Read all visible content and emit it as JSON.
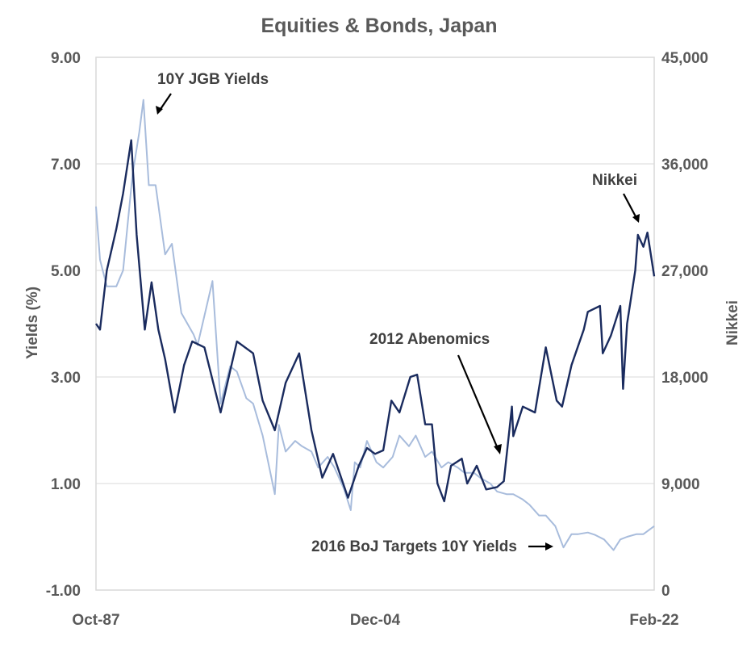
{
  "chart_data": {
    "type": "line",
    "title": "Equities & Bonds, Japan",
    "ylabel_left": "Yields  (%)",
    "ylabel_right": "Nikkei",
    "ylim_left": [
      -1,
      9
    ],
    "ylim_right": [
      0,
      45000
    ],
    "yticks_left": [
      "9.00",
      "7.00",
      "5.00",
      "3.00",
      "1.00",
      "-1.00"
    ],
    "yticks_right": [
      "45,000",
      "36,000",
      "27,000",
      "18,000",
      "9,000",
      "0"
    ],
    "x_ticks": [
      "Oct-87",
      "Dec-04",
      "Feb-22"
    ],
    "grid": true,
    "colors": {
      "yields": "#a8bcdc",
      "nikkei": "#1a2b5e",
      "grid": "#d9d9d9",
      "text": "#595959"
    },
    "series": [
      {
        "name": "10Y JGB Yields",
        "axis": "left",
        "x": [
          "1987-10",
          "1988-01",
          "1988-06",
          "1989-01",
          "1989-06",
          "1990-01",
          "1990-06",
          "1990-09",
          "1991-01",
          "1991-06",
          "1992-01",
          "1992-06",
          "1993-01",
          "1993-10",
          "1994-01",
          "1994-12",
          "1995-06",
          "1996-01",
          "1996-06",
          "1997-01",
          "1997-06",
          "1998-01",
          "1998-10",
          "1999-01",
          "1999-06",
          "2000-01",
          "2000-06",
          "2001-01",
          "2001-06",
          "2002-01",
          "2002-06",
          "2003-01",
          "2003-06",
          "2003-09",
          "2004-01",
          "2004-06",
          "2005-01",
          "2005-06",
          "2006-01",
          "2006-06",
          "2007-01",
          "2007-06",
          "2008-01",
          "2008-06",
          "2009-01",
          "2009-06",
          "2010-01",
          "2010-06",
          "2011-01",
          "2011-06",
          "2012-01",
          "2012-06",
          "2013-01",
          "2013-06",
          "2014-01",
          "2014-06",
          "2015-01",
          "2015-06",
          "2016-01",
          "2016-07",
          "2017-01",
          "2017-06",
          "2018-01",
          "2018-06",
          "2019-01",
          "2019-08",
          "2020-01",
          "2020-06",
          "2021-01",
          "2021-06",
          "2022-02"
        ],
        "values": [
          6.2,
          5.2,
          4.7,
          4.7,
          5.0,
          6.8,
          7.6,
          8.2,
          6.6,
          6.6,
          5.3,
          5.5,
          4.2,
          3.8,
          3.6,
          4.8,
          2.5,
          3.2,
          3.1,
          2.6,
          2.5,
          1.9,
          0.8,
          2.1,
          1.6,
          1.8,
          1.7,
          1.6,
          1.3,
          1.5,
          1.3,
          0.9,
          0.5,
          1.4,
          1.3,
          1.8,
          1.4,
          1.3,
          1.5,
          1.9,
          1.7,
          1.9,
          1.5,
          1.6,
          1.3,
          1.4,
          1.3,
          1.2,
          1.2,
          1.1,
          1.0,
          0.85,
          0.8,
          0.8,
          0.7,
          0.6,
          0.4,
          0.4,
          0.2,
          -0.2,
          0.05,
          0.05,
          0.08,
          0.04,
          -0.05,
          -0.25,
          -0.05,
          0.0,
          0.05,
          0.05,
          0.2
        ]
      },
      {
        "name": "Nikkei",
        "axis": "right",
        "x": [
          "1987-10",
          "1988-01",
          "1988-06",
          "1989-01",
          "1989-06",
          "1989-12",
          "1990-04",
          "1990-10",
          "1991-03",
          "1991-08",
          "1992-01",
          "1992-08",
          "1993-03",
          "1993-09",
          "1994-06",
          "1995-06",
          "1996-06",
          "1997-06",
          "1998-01",
          "1998-10",
          "1999-06",
          "2000-04",
          "2001-01",
          "2001-09",
          "2002-05",
          "2003-04",
          "2003-12",
          "2004-06",
          "2004-12",
          "2005-06",
          "2005-12",
          "2006-06",
          "2007-02",
          "2007-07",
          "2008-01",
          "2008-06",
          "2008-10",
          "2009-03",
          "2009-08",
          "2010-04",
          "2010-08",
          "2011-03",
          "2011-10",
          "2012-06",
          "2012-11",
          "2013-05",
          "2013-06",
          "2014-01",
          "2014-10",
          "2015-06",
          "2016-02",
          "2016-06",
          "2017-01",
          "2017-10",
          "2018-01",
          "2018-10",
          "2018-12",
          "2019-06",
          "2020-01",
          "2020-03",
          "2020-06",
          "2020-12",
          "2021-02",
          "2021-06",
          "2021-09",
          "2022-02"
        ],
        "values": [
          22500,
          22000,
          27000,
          30500,
          33500,
          38000,
          30000,
          22000,
          26000,
          22000,
          19500,
          15000,
          19000,
          21000,
          20500,
          15000,
          21000,
          20000,
          16000,
          13500,
          17500,
          20000,
          13500,
          9500,
          11500,
          7800,
          10500,
          12000,
          11500,
          11800,
          16000,
          15000,
          18000,
          18200,
          14000,
          14000,
          9000,
          7500,
          10500,
          11100,
          9000,
          10500,
          8500,
          8700,
          9200,
          15500,
          13000,
          15500,
          15000,
          20500,
          16000,
          15500,
          19000,
          22000,
          23500,
          24000,
          20000,
          21500,
          24000,
          17000,
          22500,
          27000,
          30000,
          29000,
          30200,
          26500
        ]
      }
    ],
    "annotations": [
      "10Y JGB Yields",
      "Nikkei",
      "2012 Abenomics",
      "2016 BoJ Targets 10Y Yields"
    ]
  }
}
